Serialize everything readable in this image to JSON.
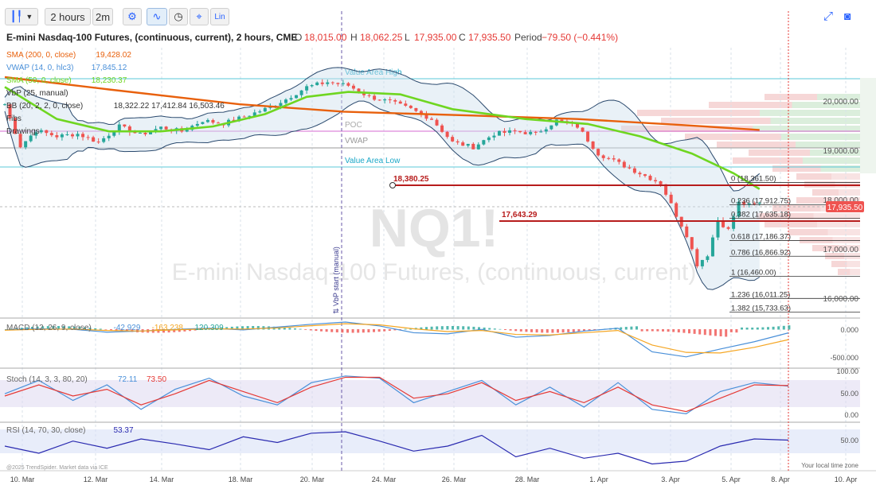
{
  "toolbar": {
    "interval": "2 hours",
    "interval2": "2m",
    "lin_label": "Lin"
  },
  "header": {
    "symbol": "E-mini Nasdaq-100 Futures, (continuous, current), 2 hours, CME",
    "o_label": "O",
    "o_value": "18,015.00",
    "h_label": "H",
    "h_value": "18,062.25",
    "l_label": "L",
    "l_value": "17,935.00",
    "c_label": "C",
    "c_value": "17,935.50",
    "period_label": "Period",
    "period_value": "−79.50 (−0.441%)"
  },
  "legend": [
    {
      "label": "SMA (200, 0, close)",
      "value": "19,428.02",
      "color": "#e8600c"
    },
    {
      "label": "VWAP (14, 0, hlc3)",
      "value": "17,845.12",
      "color": "#4a90d9"
    },
    {
      "label": "SMA (50, 0, close)",
      "value": "18,230.37",
      "color": "#6fd621"
    },
    {
      "label": "VbP (25, manual)",
      "value": "",
      "color": "#333333"
    },
    {
      "label": "BB (20, 2, 2, 0, close)",
      "value": "18,322.22  17,412.84  16,503.46",
      "color": "#333333"
    },
    {
      "label": "Fibs",
      "value": "",
      "color": "#333333"
    },
    {
      "label": "Drawings",
      "value": "",
      "color": "#333333"
    }
  ],
  "watermark": {
    "symbol": "NQ1!",
    "name": "E-mini Nasdaq-100 Futures, (continuous, current)"
  },
  "annotations": {
    "value_area_high": "Value Area High",
    "vwap": "VWAP",
    "value_area_low": "Value Area Low",
    "poc": "POC",
    "vbp_start": "⇅ VbP start (manual)",
    "level1": "18,380.25",
    "level2": "17,643.29",
    "price_tag": "17,935.50"
  },
  "fibs": [
    {
      "label": "0 (18,361.50)",
      "value": 18361.5
    },
    {
      "label": "0.236 (17,912.75)",
      "value": 17912.75
    },
    {
      "label": "0.382 (17,635.18)",
      "value": 17635.18
    },
    {
      "label": "0.618 (17,186.37)",
      "value": 17186.37
    },
    {
      "label": "0.786 (16,866.92)",
      "value": 16866.92
    },
    {
      "label": "1 (16,460.00)",
      "value": 16460.0
    },
    {
      "label": "1.236 (16,011.25)",
      "value": 16011.25
    },
    {
      "label": "1.382 (15,733.63)",
      "value": 15733.63
    }
  ],
  "macd": {
    "label": "MACD (12, 26, 9, close)",
    "v1": "-42.929",
    "v2": "-163.238",
    "v3": "120.309",
    "ticks": [
      "0.000",
      "-500.000"
    ]
  },
  "stoch": {
    "label": "Stoch (14, 3, 3, 80, 20)",
    "v1": "72.11",
    "v2": "73.50",
    "ticks": [
      "100.00",
      "50.00",
      "0.00"
    ]
  },
  "rsi": {
    "label": "RSI (14, 70, 30, close)",
    "v1": "53.37",
    "ticks": [
      "50.00"
    ]
  },
  "footer": {
    "copyright": "@2025 TrendSpider. Market data via ICE",
    "timezone": "Your local time zone"
  },
  "colors": {
    "up": "#26a69a",
    "down": "#ef5350",
    "sma200": "#e8600c",
    "sma50": "#6fd621",
    "level": "#b71c1c"
  },
  "chart_data": [
    {
      "type": "candlestick",
      "title": "E-mini Nasdaq-100 Futures, (continuous, current), 2 hours, CME",
      "x_ticks": [
        "10. Mar",
        "12. Mar",
        "14. Mar",
        "18. Mar",
        "20. Mar",
        "24. Mar",
        "26. Mar",
        "28. Mar",
        "1. Apr",
        "3. Apr",
        "5. Apr",
        "8. Apr",
        "10. Apr"
      ],
      "y_ticks": [
        "20,000.00",
        "19,000.00",
        "18,000.00",
        "17,000.00",
        "16,000.00"
      ],
      "ylim": [
        15400,
        20600
      ],
      "close_path": [
        [
          0,
          19950
        ],
        [
          3,
          19100
        ],
        [
          6,
          19420
        ],
        [
          10,
          19300
        ],
        [
          14,
          19350
        ],
        [
          18,
          19180
        ],
        [
          22,
          19500
        ],
        [
          26,
          19330
        ],
        [
          30,
          19480
        ],
        [
          34,
          19400
        ],
        [
          38,
          19620
        ],
        [
          42,
          19560
        ],
        [
          46,
          19700
        ],
        [
          50,
          19850
        ],
        [
          54,
          20050
        ],
        [
          58,
          20300
        ],
        [
          62,
          20400
        ],
        [
          66,
          20330
        ],
        [
          70,
          20100
        ],
        [
          74,
          20000
        ],
        [
          78,
          19850
        ],
        [
          82,
          19650
        ],
        [
          86,
          19180
        ],
        [
          90,
          19080
        ],
        [
          94,
          19350
        ],
        [
          98,
          19400
        ],
        [
          102,
          19350
        ],
        [
          106,
          19620
        ],
        [
          110,
          19500
        ],
        [
          114,
          18950
        ],
        [
          118,
          18750
        ],
        [
          122,
          18550
        ],
        [
          126,
          18350
        ],
        [
          129,
          17700
        ],
        [
          131,
          17300
        ],
        [
          133,
          16700
        ],
        [
          135,
          16900
        ],
        [
          137,
          17600
        ],
        [
          139,
          17400
        ],
        [
          141,
          17950
        ],
        [
          143,
          17900
        ],
        [
          145,
          17935.5
        ]
      ],
      "x_count": 152,
      "sma200": [
        [
          0,
          20500
        ],
        [
          20,
          20250
        ],
        [
          45,
          19950
        ],
        [
          65,
          19800
        ],
        [
          90,
          19720
        ],
        [
          110,
          19650
        ],
        [
          130,
          19530
        ],
        [
          145,
          19428.02
        ]
      ],
      "sma50": [
        [
          0,
          20300
        ],
        [
          10,
          19650
        ],
        [
          20,
          19400
        ],
        [
          30,
          19400
        ],
        [
          40,
          19500
        ],
        [
          50,
          19750
        ],
        [
          58,
          20100
        ],
        [
          66,
          20200
        ],
        [
          76,
          20150
        ],
        [
          86,
          19850
        ],
        [
          100,
          19650
        ],
        [
          112,
          19550
        ],
        [
          122,
          19300
        ],
        [
          132,
          18950
        ],
        [
          140,
          18550
        ],
        [
          145,
          18230.37
        ]
      ],
      "horizontal_levels": [
        {
          "name": "Value Area High",
          "value": 20450
        },
        {
          "name": "POC",
          "value": 19420
        },
        {
          "name": "VWAP",
          "value": 19080
        },
        {
          "name": "Value Area Low",
          "value": 18780
        },
        {
          "name": "18,380.25",
          "value": 18380.25
        },
        {
          "name": "17,643.29",
          "value": 17643.29
        }
      ]
    },
    {
      "type": "line",
      "title": "MACD (12, 26, 9, close)",
      "series": [
        {
          "name": "MACD",
          "values": [
            10,
            30,
            20,
            -30,
            -10,
            20,
            40,
            10,
            60,
            110,
            150,
            80,
            -40,
            -60,
            20,
            -120,
            -90,
            -10,
            40,
            -380,
            -470,
            -330,
            -200,
            -42.9
          ]
        },
        {
          "name": "Signal",
          "values": [
            5,
            20,
            25,
            0,
            -10,
            10,
            30,
            25,
            45,
            85,
            120,
            100,
            30,
            -20,
            0,
            -70,
            -80,
            -40,
            0,
            -260,
            -390,
            -400,
            -300,
            -163.2
          ]
        }
      ],
      "ylim": [
        -600,
        150
      ]
    },
    {
      "type": "line",
      "title": "Stoch (14, 3, 3, 80, 20)",
      "series": [
        {
          "name": "%K",
          "values": [
            55,
            85,
            40,
            75,
            20,
            65,
            90,
            50,
            30,
            80,
            95,
            90,
            35,
            60,
            85,
            30,
            70,
            25,
            80,
            20,
            10,
            60,
            80,
            72.11
          ]
        },
        {
          "name": "%D",
          "values": [
            50,
            75,
            50,
            65,
            30,
            55,
            85,
            60,
            35,
            70,
            92,
            92,
            45,
            55,
            80,
            40,
            60,
            35,
            70,
            30,
            15,
            45,
            75,
            73.5
          ]
        }
      ],
      "ylim": [
        0,
        100
      ]
    },
    {
      "type": "line",
      "title": "RSI (14, 70, 30, close)",
      "series": [
        {
          "name": "RSI",
          "values": [
            45,
            35,
            52,
            42,
            55,
            48,
            40,
            58,
            50,
            63,
            65,
            52,
            38,
            45,
            60,
            30,
            42,
            28,
            35,
            20,
            24,
            45,
            55,
            53.37
          ]
        }
      ],
      "ylim": [
        15,
        75
      ]
    }
  ]
}
